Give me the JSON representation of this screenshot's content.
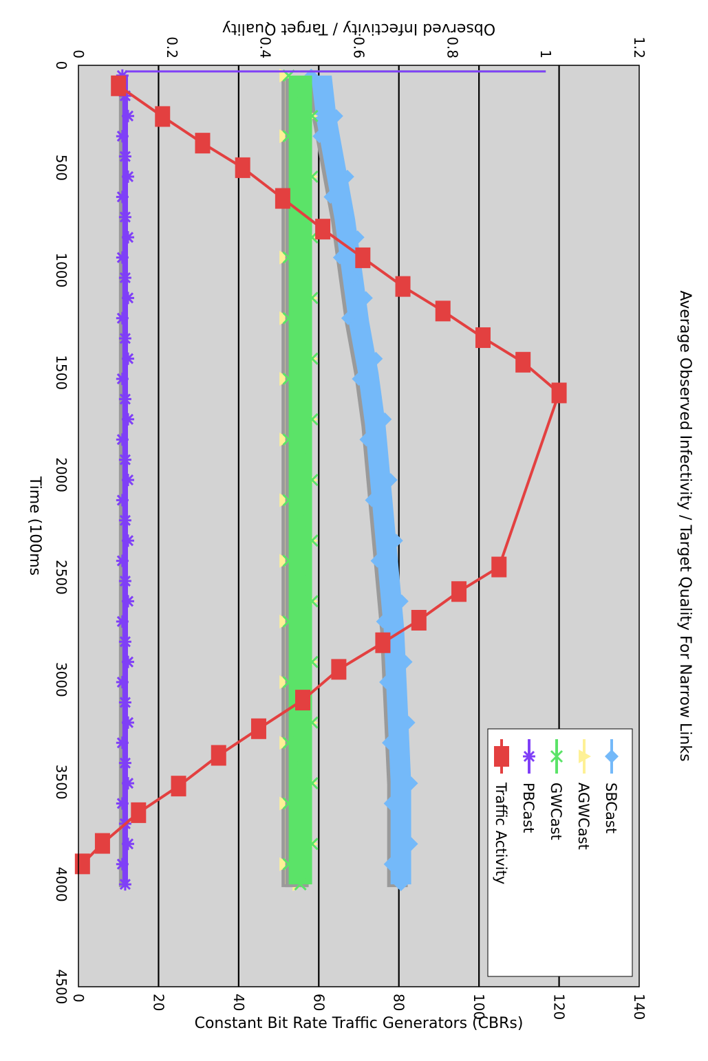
{
  "chart_data": {
    "type": "line",
    "title": "Average Observed Infectivity / Target Quality For Narrow Links",
    "xlabel": "Time (100ms",
    "ylabel": "Observed Infectivity / Target Quality",
    "y2label": "Constant Bit Rate Traffic Generators (CBRs)",
    "xlim": [
      0,
      4500
    ],
    "ylim": [
      0,
      1.2
    ],
    "y2lim": [
      0,
      140
    ],
    "x_ticks": [
      "0",
      "500",
      "1000",
      "1500",
      "2000",
      "2500",
      "3000",
      "3500",
      "4000",
      "4500"
    ],
    "y_ticks": [
      "0",
      "0.2",
      "0.4",
      "0.6",
      "0.8",
      "1",
      "1.2"
    ],
    "y2_ticks": [
      "0",
      "20",
      "40",
      "60",
      "80",
      "100",
      "120",
      "140"
    ],
    "grid": "horizontal",
    "legend_position": "top-right",
    "background": "#d3d3d3",
    "series": [
      {
        "name": "SBCast",
        "axis": "left",
        "color": "#74b9f9",
        "marker": "diamond",
        "start": [
          30,
          1.0
        ],
        "x": [
          50,
          250,
          500,
          750,
          1000,
          1250,
          1500,
          1750,
          2000,
          2250,
          2500,
          2750,
          3000,
          3250,
          3500,
          3750,
          4000
        ],
        "values": [
          0.52,
          0.53,
          0.55,
          0.57,
          0.585,
          0.6,
          0.62,
          0.635,
          0.645,
          0.655,
          0.665,
          0.675,
          0.68,
          0.685,
          0.69,
          0.69,
          0.69
        ]
      },
      {
        "name": "AGWCast",
        "axis": "left",
        "color": "#fef196",
        "marker": "triangle",
        "start": [
          30,
          1.0
        ],
        "x": [
          50,
          4000
        ],
        "values": [
          0.47,
          0.47
        ]
      },
      {
        "name": "GWCast",
        "axis": "left",
        "color": "#5be368",
        "marker": "x",
        "start": [
          30,
          1.0
        ],
        "x": [
          50,
          4000
        ],
        "values": [
          0.475,
          0.475
        ]
      },
      {
        "name": "PBCast",
        "axis": "left",
        "color": "#7f3ff7",
        "marker": "star",
        "start": [
          30,
          1.0
        ],
        "x": [
          50,
          4000
        ],
        "values": [
          0.1,
          0.1
        ]
      },
      {
        "name": "Traffic Activity",
        "axis": "right",
        "color": "#e34040",
        "marker": "square",
        "x": [
          100,
          250,
          380,
          500,
          650,
          800,
          940,
          1080,
          1200,
          1330,
          1450,
          1600,
          2450,
          2570,
          2710,
          2820,
          2950,
          3100,
          3240,
          3370,
          3520,
          3650,
          3800,
          3900
        ],
        "values": [
          10,
          21,
          31,
          41,
          51,
          61,
          71,
          81,
          91,
          101,
          111,
          120,
          105,
          95,
          85,
          76,
          65,
          56,
          45,
          35,
          25,
          15,
          6,
          1
        ]
      }
    ]
  }
}
